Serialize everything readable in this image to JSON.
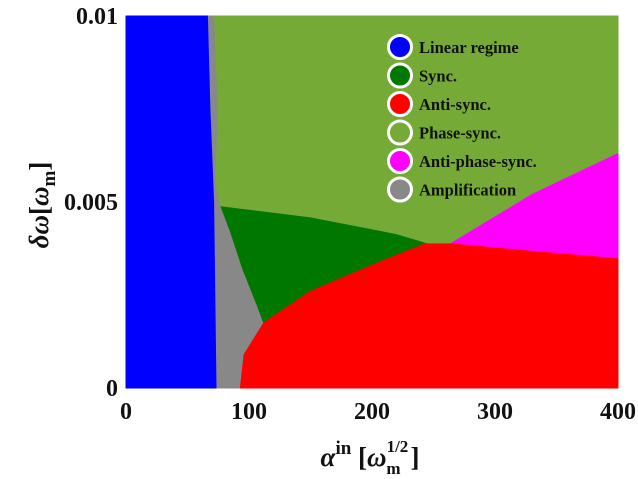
{
  "chart_data": {
    "type": "area",
    "title": "",
    "xlabel": "α^in [ω_m^1/2]",
    "ylabel": "δω[ω_m]",
    "xlim": [
      0,
      400
    ],
    "ylim": [
      0,
      0.01
    ],
    "x_ticks": [
      "0",
      "100",
      "200",
      "300",
      "400"
    ],
    "y_ticks": [
      "0",
      "0.005",
      "0.01"
    ],
    "grid": false,
    "legend_position": "top-right",
    "regions": [
      {
        "name": "Linear regime",
        "color": "#0000FF",
        "polygon": [
          [
            0,
            0
          ],
          [
            74,
            0
          ],
          [
            73,
            0.0025
          ],
          [
            72,
            0.005
          ],
          [
            69,
            0.0075
          ],
          [
            67,
            0.01
          ],
          [
            0,
            0.01
          ]
        ]
      },
      {
        "name": "Amplification",
        "color": "#888888",
        "polygon": [
          [
            74,
            0
          ],
          [
            93,
            0
          ],
          [
            96,
            0.0009
          ],
          [
            112,
            0.00175
          ],
          [
            107,
            0.0022
          ],
          [
            95,
            0.0032
          ],
          [
            85,
            0.0042
          ],
          [
            77,
            0.0049
          ],
          [
            73,
            0.0055
          ],
          [
            75,
            0.0075
          ],
          [
            72,
            0.01
          ],
          [
            67,
            0.01
          ],
          [
            69,
            0.0075
          ],
          [
            72,
            0.005
          ],
          [
            73,
            0.0025
          ]
        ]
      },
      {
        "name": "Sync.",
        "color": "#007800",
        "polygon": [
          [
            112,
            0.00175
          ],
          [
            150,
            0.0026
          ],
          [
            200,
            0.0033
          ],
          [
            245,
            0.0039
          ],
          [
            220,
            0.00415
          ],
          [
            150,
            0.0046
          ],
          [
            77,
            0.0049
          ],
          [
            85,
            0.0042
          ],
          [
            95,
            0.0032
          ],
          [
            107,
            0.0022
          ]
        ]
      },
      {
        "name": "Anti-sync.",
        "color": "#FF0000",
        "polygon": [
          [
            93,
            0
          ],
          [
            400,
            0
          ],
          [
            400,
            0.0035
          ],
          [
            330,
            0.0037
          ],
          [
            265,
            0.0039
          ],
          [
            245,
            0.0039
          ],
          [
            200,
            0.0033
          ],
          [
            150,
            0.0026
          ],
          [
            112,
            0.00175
          ],
          [
            96,
            0.0009
          ]
        ]
      },
      {
        "name": "Phase-sync.",
        "color": "#76AA37",
        "polygon": [
          [
            72,
            0.01
          ],
          [
            400,
            0.01
          ],
          [
            400,
            0.0063
          ],
          [
            330,
            0.0052
          ],
          [
            265,
            0.0039
          ],
          [
            245,
            0.0039
          ],
          [
            220,
            0.00415
          ],
          [
            150,
            0.0046
          ],
          [
            77,
            0.0049
          ],
          [
            73,
            0.0055
          ],
          [
            75,
            0.0075
          ]
        ]
      },
      {
        "name": "Anti-phase-sync.",
        "color": "#FF00FF",
        "polygon": [
          [
            265,
            0.0039
          ],
          [
            330,
            0.0052
          ],
          [
            400,
            0.0063
          ],
          [
            400,
            0.0035
          ],
          [
            330,
            0.0037
          ]
        ]
      }
    ],
    "legend": [
      {
        "label": "Linear regime",
        "color": "#0000FF"
      },
      {
        "label": "Sync.",
        "color": "#007800"
      },
      {
        "label": "Anti-sync.",
        "color": "#FF0000"
      },
      {
        "label": "Phase-sync.",
        "color": "#76AA37"
      },
      {
        "label": "Anti-phase-sync.",
        "color": "#FF00FF"
      },
      {
        "label": "Amplification",
        "color": "#888888"
      }
    ]
  }
}
